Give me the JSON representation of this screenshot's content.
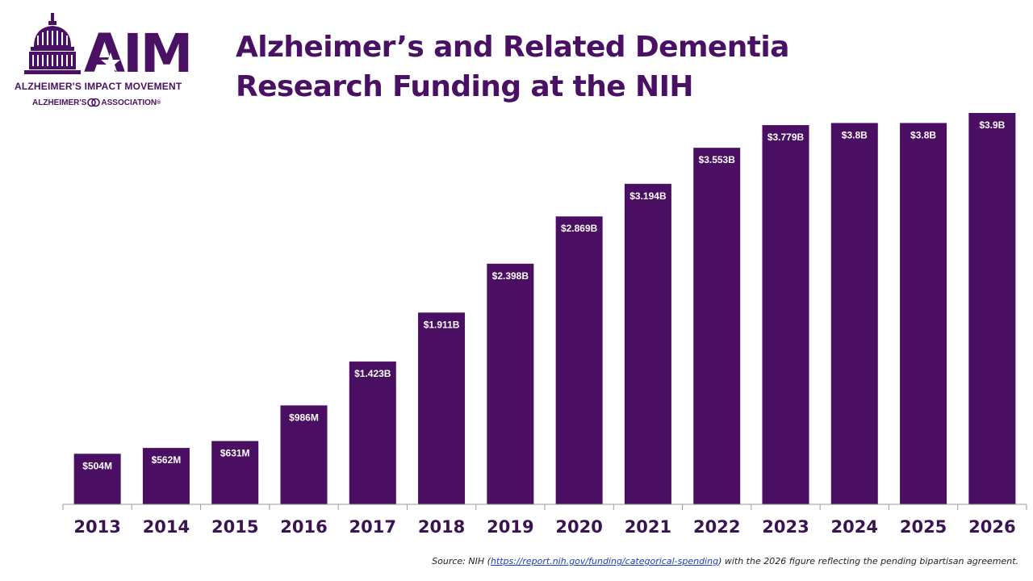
{
  "logo": {
    "wordmark": "AIM",
    "tagline": "ALZHEIMER'S IMPACT MOVEMENT",
    "association_left": "ALZHEIMER'S",
    "association_right": "ASSOCIATION",
    "association_mark": "®"
  },
  "title": {
    "line1": "Alzheimer’s and Related Dementia",
    "line2": "Research Funding at the NIH"
  },
  "source": {
    "prefix": "Source: NIH (",
    "link": "https://report.nih.gov/funding/categorical-spending",
    "suffix": ") with the 2026 figure reflecting the pending bipartisan agreement."
  },
  "colors": {
    "bar": "#4a0f63",
    "brand": "#4a1063",
    "label": "#ffffff",
    "axis": "#9a9a9a",
    "tick_text": "#3a1450"
  },
  "chart_data": {
    "type": "bar",
    "categories": [
      "2013",
      "2014",
      "2015",
      "2016",
      "2017",
      "2018",
      "2019",
      "2020",
      "2021",
      "2022",
      "2023",
      "2024",
      "2025",
      "2026"
    ],
    "values": [
      504,
      562,
      631,
      986,
      1423,
      1911,
      2398,
      2869,
      3194,
      3553,
      3779,
      3800,
      3800,
      3900
    ],
    "unit": "millions USD",
    "data_labels": [
      "$504M",
      "$562M",
      "$631M",
      "$986M",
      "$1.423B",
      "$1.911B",
      "$2.398B",
      "$2.869B",
      "$3.194B",
      "$3.553B",
      "$3.779B",
      "$3.8B",
      "$3.8B",
      "$3.9B"
    ],
    "title": "Alzheimer’s and Related Dementia Research Funding at the NIH",
    "xlabel": "",
    "ylabel": "",
    "ylim": [
      0,
      3900
    ],
    "grid": false,
    "legend": "none"
  }
}
